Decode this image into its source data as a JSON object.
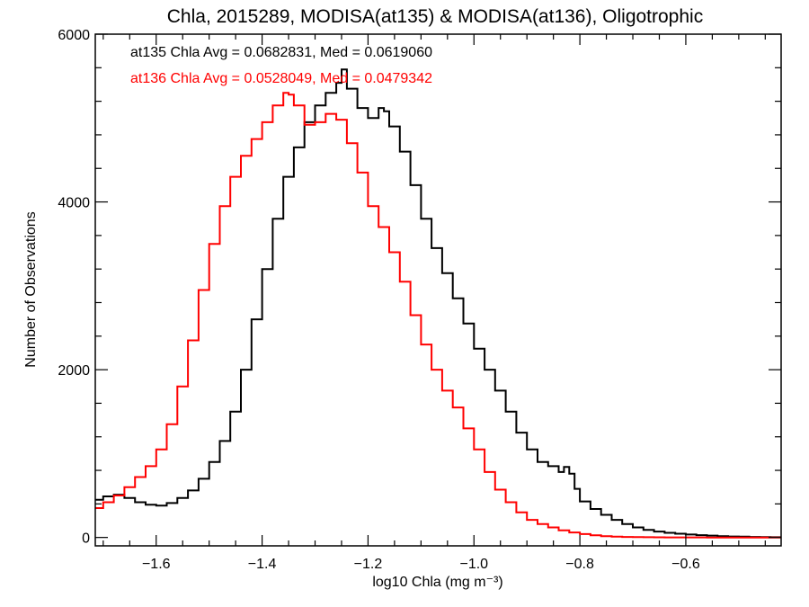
{
  "chart_data": {
    "type": "line",
    "title": "Chla, 2015289, MODISA(at135) & MODISA(at136), Oligotrophic",
    "xlabel": "log10 Chla (mg m⁻³)",
    "ylabel": "Number of Observations",
    "xlim": [
      -1.715,
      -0.42
    ],
    "ylim": [
      -100,
      6000
    ],
    "xticks": [
      -1.6,
      -1.4,
      -1.2,
      -1.0,
      -0.8,
      -0.6
    ],
    "xtick_labels": [
      "−1.6",
      "−1.4",
      "−1.2",
      "−1.0",
      "−0.8",
      "−0.6"
    ],
    "yticks": [
      0,
      2000,
      4000,
      6000
    ],
    "ytick_labels": [
      "0",
      "2000",
      "4000",
      "6000"
    ],
    "grid": false,
    "annotations": [
      {
        "text": "at135 Chla Avg = 0.0682831, Med = 0.0619060",
        "color": "#000000"
      },
      {
        "text": "at136 Chla Avg = 0.0528049, Med = 0.0479342",
        "color": "#ff0000"
      }
    ],
    "series": [
      {
        "color": "#000000",
        "step": true,
        "x": [
          -1.715,
          -1.7,
          -1.68,
          -1.66,
          -1.64,
          -1.62,
          -1.6,
          -1.58,
          -1.56,
          -1.54,
          -1.52,
          -1.5,
          -1.48,
          -1.46,
          -1.44,
          -1.42,
          -1.4,
          -1.38,
          -1.36,
          -1.34,
          -1.32,
          -1.3,
          -1.28,
          -1.26,
          -1.25,
          -1.24,
          -1.22,
          -1.2,
          -1.18,
          -1.17,
          -1.16,
          -1.14,
          -1.12,
          -1.1,
          -1.08,
          -1.06,
          -1.04,
          -1.02,
          -1.0,
          -0.98,
          -0.96,
          -0.94,
          -0.92,
          -0.9,
          -0.88,
          -0.86,
          -0.84,
          -0.83,
          -0.82,
          -0.81,
          -0.8,
          -0.78,
          -0.76,
          -0.74,
          -0.72,
          -0.7,
          -0.68,
          -0.66,
          -0.64,
          -0.62,
          -0.6,
          -0.58,
          -0.56,
          -0.54,
          -0.52,
          -0.5,
          -0.48,
          -0.46,
          -0.44,
          -0.42
        ],
        "y": [
          450,
          490,
          510,
          470,
          420,
          390,
          380,
          410,
          470,
          560,
          700,
          900,
          1150,
          1500,
          2000,
          2600,
          3200,
          3800,
          4300,
          4650,
          4950,
          5150,
          5300,
          5420,
          5580,
          5350,
          5120,
          5000,
          5120,
          5080,
          4900,
          4600,
          4200,
          3800,
          3450,
          3150,
          2850,
          2550,
          2250,
          2000,
          1750,
          1500,
          1250,
          1050,
          900,
          850,
          780,
          840,
          760,
          580,
          430,
          340,
          270,
          210,
          160,
          120,
          90,
          70,
          55,
          45,
          35,
          28,
          22,
          16,
          12,
          9,
          6,
          4,
          3,
          2
        ]
      },
      {
        "color": "#ff0000",
        "step": true,
        "x": [
          -1.715,
          -1.7,
          -1.68,
          -1.66,
          -1.64,
          -1.62,
          -1.6,
          -1.58,
          -1.56,
          -1.54,
          -1.52,
          -1.5,
          -1.48,
          -1.46,
          -1.44,
          -1.42,
          -1.4,
          -1.38,
          -1.36,
          -1.35,
          -1.34,
          -1.32,
          -1.3,
          -1.28,
          -1.26,
          -1.24,
          -1.22,
          -1.2,
          -1.18,
          -1.16,
          -1.14,
          -1.12,
          -1.1,
          -1.08,
          -1.06,
          -1.04,
          -1.02,
          -1.0,
          -0.98,
          -0.96,
          -0.94,
          -0.92,
          -0.9,
          -0.88,
          -0.86,
          -0.84,
          -0.82,
          -0.8,
          -0.78,
          -0.76,
          -0.74,
          -0.72,
          -0.7,
          -0.68,
          -0.66,
          -0.64,
          -0.62,
          -0.6,
          -0.58,
          -0.56,
          -0.54,
          -0.52,
          -0.5,
          -0.48,
          -0.46,
          -0.44,
          -0.42
        ],
        "y": [
          350,
          420,
          500,
          600,
          720,
          850,
          1050,
          1350,
          1800,
          2350,
          2950,
          3500,
          3950,
          4300,
          4550,
          4750,
          4950,
          5150,
          5300,
          5280,
          5150,
          4920,
          4950,
          5050,
          4980,
          4700,
          4350,
          3950,
          3700,
          3400,
          3050,
          2650,
          2300,
          2000,
          1750,
          1550,
          1300,
          1050,
          780,
          570,
          420,
          300,
          210,
          160,
          120,
          85,
          60,
          40,
          25,
          15,
          10,
          6,
          4,
          3,
          2,
          1,
          1,
          1,
          1,
          0,
          0,
          0,
          0,
          0,
          0,
          0,
          0
        ]
      }
    ]
  }
}
